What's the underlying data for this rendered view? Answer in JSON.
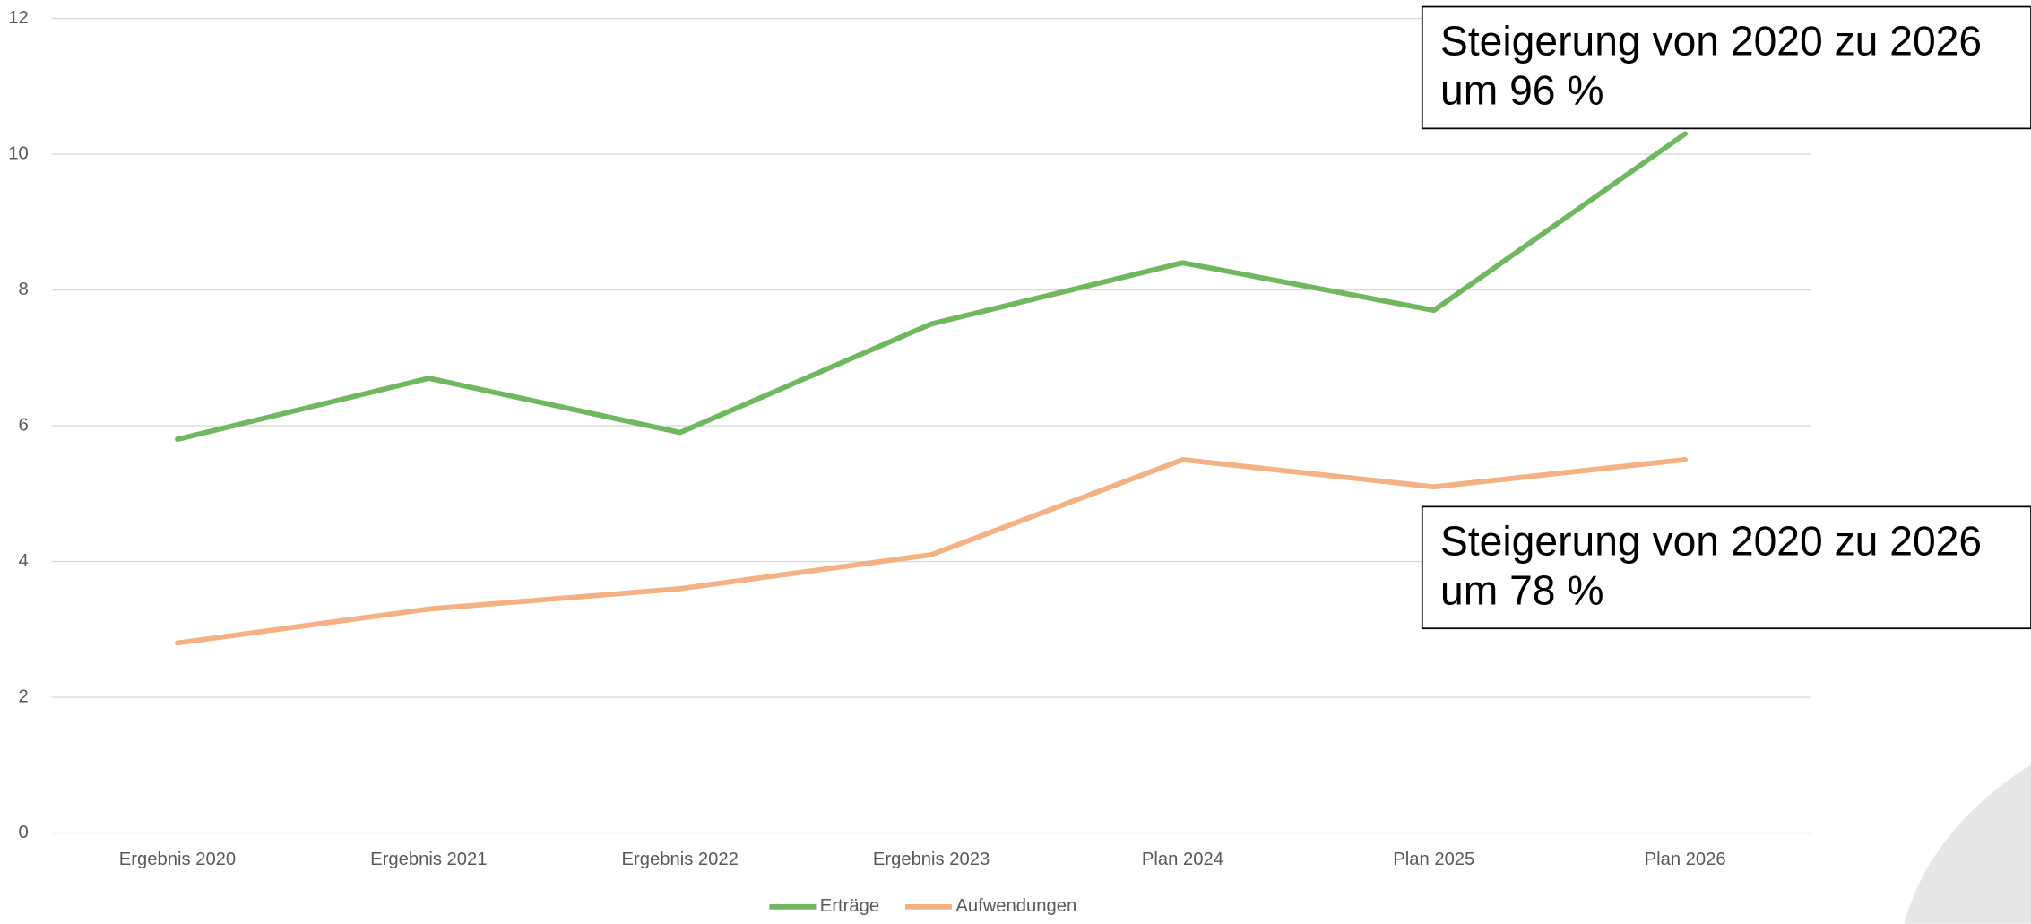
{
  "chart_data": {
    "type": "line",
    "categories": [
      "Ergebnis 2020",
      "Ergebnis 2021",
      "Ergebnis 2022",
      "Ergebnis 2023",
      "Plan 2024",
      "Plan 2025",
      "Plan 2026"
    ],
    "series": [
      {
        "name": "Erträge",
        "color": "#70b85f",
        "values": [
          5.8,
          6.7,
          5.9,
          7.5,
          8.4,
          7.7,
          10.3
        ]
      },
      {
        "name": "Aufwendungen",
        "color": "#f4b183",
        "values": [
          2.8,
          3.3,
          3.6,
          4.1,
          5.5,
          5.1,
          5.5
        ]
      }
    ],
    "ylim": [
      0,
      12
    ],
    "yticks": [
      0,
      2,
      4,
      6,
      8,
      10,
      12
    ],
    "grid": true,
    "legend": "bottom",
    "annotations": [
      [
        "Steigerung von 2020 zu 2026",
        "um 96 %"
      ],
      [
        "Steigerung von 2020 zu 2026",
        "um 78 %"
      ]
    ]
  }
}
